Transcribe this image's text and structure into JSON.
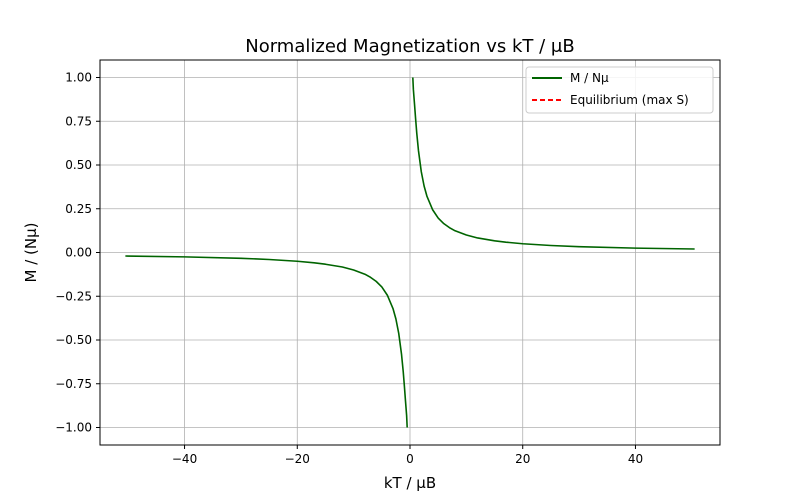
{
  "chart_data": {
    "type": "line",
    "title": "Normalized Magnetization vs kT / μB",
    "xlabel": "kT / μB",
    "ylabel": "M / (Nμ)",
    "xlim": [
      -55,
      55
    ],
    "ylim": [
      -1.1,
      1.1
    ],
    "xticks": [
      -40,
      -20,
      0,
      20,
      40
    ],
    "xtick_labels": [
      "−40",
      "−20",
      "0",
      "20",
      "40"
    ],
    "yticks": [
      1.0,
      0.75,
      0.5,
      0.25,
      0.0,
      -0.25,
      -0.5,
      -0.75,
      -1.0
    ],
    "ytick_labels": [
      "1.00",
      "0.75",
      "0.50",
      "0.25",
      "0.00",
      "−0.25",
      "−0.50",
      "−0.75",
      "−1.00"
    ],
    "grid": true,
    "legend_position": "top-right",
    "series": [
      {
        "name": "M / Nμ",
        "color": "#006400",
        "style": "solid",
        "segments": [
          {
            "x": [
              -50.5,
              -40,
              -30,
              -25,
              -20,
              -17,
              -15,
              -12,
              -10,
              -8,
              -7,
              -6,
              -5,
              -4,
              -3,
              -2.5,
              -2,
              -1.5,
              -1.2,
              -1.0,
              -0.8,
              -0.6,
              -0.5
            ],
            "y": [
              -0.02,
              -0.025,
              -0.033,
              -0.04,
              -0.05,
              -0.059,
              -0.067,
              -0.083,
              -0.1,
              -0.124,
              -0.142,
              -0.165,
              -0.197,
              -0.245,
              -0.322,
              -0.38,
              -0.462,
              -0.583,
              -0.682,
              -0.762,
              -0.848,
              -0.931,
              -1.0
            ]
          },
          {
            "x": [
              0.5,
              0.6,
              0.8,
              1.0,
              1.2,
              1.5,
              2,
              2.5,
              3,
              4,
              5,
              6,
              7,
              8,
              10,
              12,
              15,
              17,
              20,
              25,
              30,
              40,
              50.5
            ],
            "y": [
              1.0,
              0.931,
              0.848,
              0.762,
              0.682,
              0.583,
              0.462,
              0.38,
              0.322,
              0.245,
              0.197,
              0.165,
              0.142,
              0.124,
              0.1,
              0.083,
              0.067,
              0.059,
              0.05,
              0.04,
              0.033,
              0.025,
              0.02
            ]
          }
        ]
      },
      {
        "name": "Equilibrium (max S)",
        "color": "#ff0000",
        "style": "dashed",
        "segments": []
      }
    ]
  }
}
